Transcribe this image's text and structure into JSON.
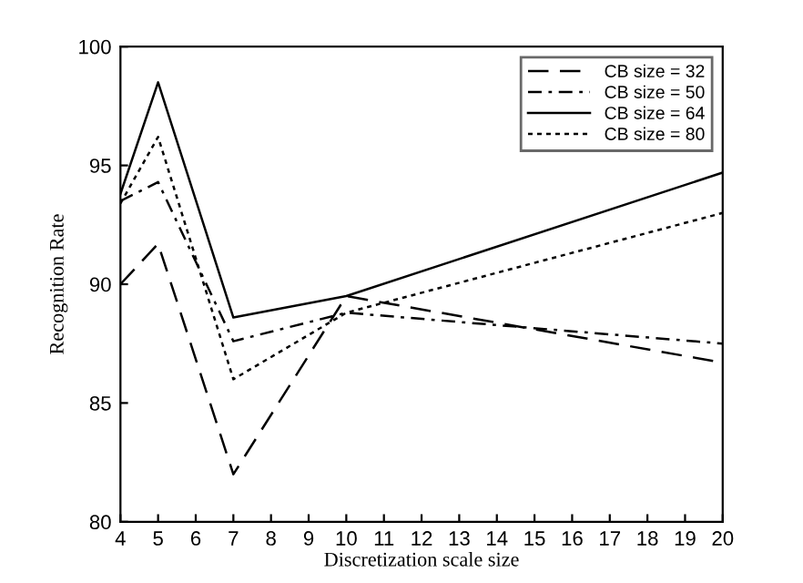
{
  "chart_data": {
    "type": "line",
    "xlabel": "Discretization scale size",
    "ylabel": "Recognition Rate",
    "x": [
      4,
      5,
      7,
      10,
      20
    ],
    "series": [
      {
        "name": "CB size = 32",
        "color": "#000000",
        "line_style": "longdash",
        "values": [
          90.0,
          91.7,
          82.0,
          89.5,
          86.7
        ]
      },
      {
        "name": "CB size = 50",
        "color": "#000000",
        "line_style": "dashdot",
        "values": [
          93.5,
          94.3,
          87.6,
          88.8,
          87.5
        ]
      },
      {
        "name": "CB size = 64",
        "color": "#000000",
        "line_style": "solid",
        "values": [
          93.8,
          98.5,
          88.6,
          89.5,
          94.7
        ]
      },
      {
        "name": "CB size = 80",
        "color": "#000000",
        "line_style": "dotted",
        "values": [
          93.4,
          96.2,
          86.0,
          88.8,
          93.0
        ]
      }
    ],
    "xlim": [
      4,
      20
    ],
    "ylim": [
      80,
      100
    ],
    "xticks": [
      4,
      5,
      6,
      7,
      8,
      9,
      10,
      11,
      12,
      13,
      14,
      15,
      16,
      17,
      18,
      19,
      20
    ],
    "yticks": [
      80,
      85,
      90,
      95,
      100
    ],
    "grid": false,
    "legend": "top right",
    "marker": "none"
  }
}
